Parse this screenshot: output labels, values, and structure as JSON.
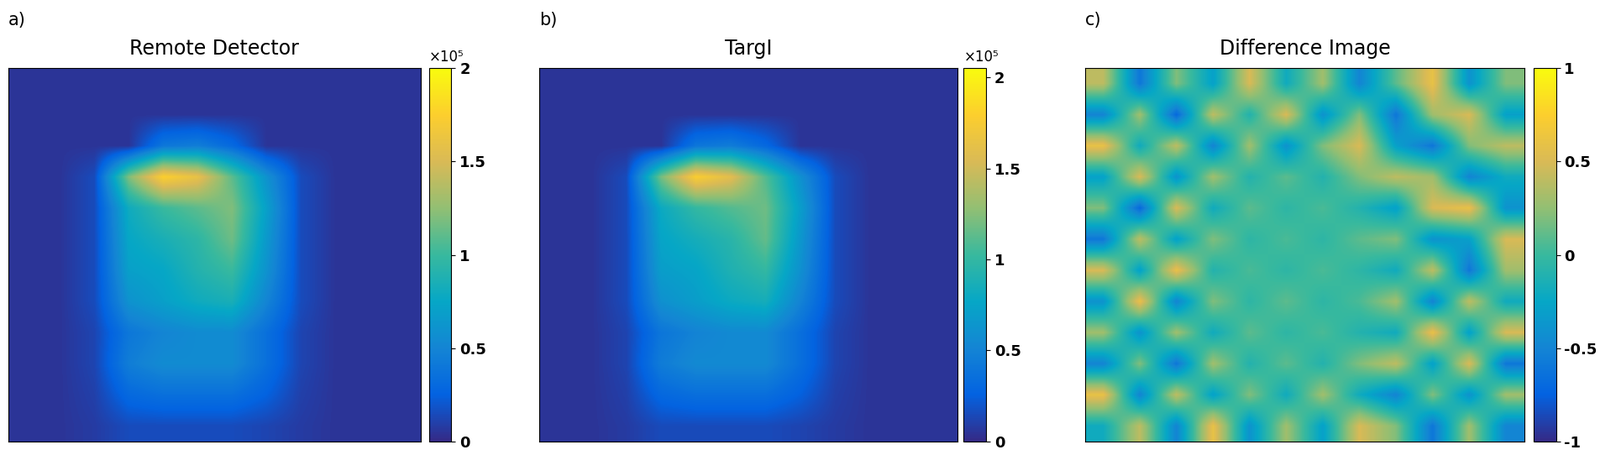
{
  "chart_data": [
    {
      "type": "heatmap",
      "panel_label": "a)",
      "title": "Remote Detector",
      "tick_labels": false,
      "cells": [
        [
          5000,
          5000,
          5000,
          5000,
          5000,
          5000,
          5000,
          5000,
          5000,
          5000,
          5000,
          5000
        ],
        [
          5000,
          5000,
          5000,
          5000,
          5000,
          5000,
          5000,
          5000,
          5000,
          5000,
          5000,
          5000
        ],
        [
          5000,
          5000,
          5000,
          5000,
          40000,
          45000,
          30000,
          5000,
          5000,
          5000,
          5000,
          5000
        ],
        [
          5000,
          5000,
          15000,
          120000,
          175000,
          160000,
          110000,
          60000,
          15000,
          5000,
          5000,
          5000
        ],
        [
          5000,
          5000,
          15000,
          80000,
          100000,
          110000,
          120000,
          70000,
          15000,
          5000,
          5000,
          5000
        ],
        [
          5000,
          5000,
          15000,
          75000,
          85000,
          95000,
          115000,
          65000,
          15000,
          5000,
          5000,
          5000
        ],
        [
          5000,
          5000,
          15000,
          70000,
          75000,
          90000,
          100000,
          60000,
          15000,
          5000,
          5000,
          5000
        ],
        [
          5000,
          5000,
          15000,
          60000,
          70000,
          80000,
          85000,
          50000,
          15000,
          5000,
          5000,
          5000
        ],
        [
          5000,
          5000,
          12000,
          40000,
          50000,
          55000,
          55000,
          35000,
          12000,
          5000,
          5000,
          5000
        ],
        [
          5000,
          5000,
          12000,
          45000,
          55000,
          55000,
          55000,
          35000,
          12000,
          5000,
          5000,
          5000
        ],
        [
          5000,
          5000,
          10000,
          30000,
          35000,
          35000,
          35000,
          25000,
          10000,
          5000,
          5000,
          5000
        ],
        [
          5000,
          5000,
          8000,
          15000,
          15000,
          15000,
          15000,
          12000,
          8000,
          5000,
          5000,
          5000
        ]
      ],
      "colorbar_range": [
        0,
        200000
      ],
      "colorbar_ticks": [
        {
          "value": 0,
          "label": "0"
        },
        {
          "value": 50000,
          "label": "0.5"
        },
        {
          "value": 100000,
          "label": "1"
        },
        {
          "value": 150000,
          "label": "1.5"
        },
        {
          "value": 200000,
          "label": "2"
        }
      ],
      "colorbar_multiplier": "×10⁵"
    },
    {
      "type": "heatmap",
      "panel_label": "b)",
      "title": "TargI",
      "tick_labels": false,
      "cells": [
        [
          5000,
          5000,
          5000,
          5000,
          5000,
          5000,
          5000,
          5000,
          5000,
          5000,
          5000,
          5000
        ],
        [
          5000,
          5000,
          5000,
          5000,
          5000,
          5000,
          5000,
          5000,
          5000,
          5000,
          5000,
          5000
        ],
        [
          5000,
          5000,
          5000,
          5000,
          40000,
          45000,
          30000,
          5000,
          5000,
          5000,
          5000,
          5000
        ],
        [
          5000,
          5000,
          15000,
          120000,
          178000,
          160000,
          110000,
          60000,
          15000,
          5000,
          5000,
          5000
        ],
        [
          5000,
          5000,
          15000,
          80000,
          100000,
          110000,
          118000,
          70000,
          15000,
          5000,
          5000,
          5000
        ],
        [
          5000,
          5000,
          15000,
          75000,
          85000,
          95000,
          115000,
          65000,
          15000,
          5000,
          5000,
          5000
        ],
        [
          5000,
          5000,
          15000,
          70000,
          75000,
          90000,
          100000,
          60000,
          15000,
          5000,
          5000,
          5000
        ],
        [
          5000,
          5000,
          15000,
          60000,
          70000,
          80000,
          85000,
          50000,
          15000,
          5000,
          5000,
          5000
        ],
        [
          5000,
          5000,
          12000,
          40000,
          50000,
          55000,
          55000,
          35000,
          12000,
          5000,
          5000,
          5000
        ],
        [
          5000,
          5000,
          12000,
          45000,
          55000,
          55000,
          55000,
          35000,
          12000,
          5000,
          5000,
          5000
        ],
        [
          5000,
          5000,
          10000,
          30000,
          35000,
          35000,
          35000,
          25000,
          10000,
          5000,
          5000,
          5000
        ],
        [
          5000,
          5000,
          8000,
          15000,
          15000,
          15000,
          15000,
          12000,
          8000,
          5000,
          5000,
          5000
        ]
      ],
      "colorbar_range": [
        0,
        205000
      ],
      "colorbar_ticks": [
        {
          "value": 0,
          "label": "0"
        },
        {
          "value": 50000,
          "label": "0.5"
        },
        {
          "value": 100000,
          "label": "1"
        },
        {
          "value": 150000,
          "label": "1.5"
        },
        {
          "value": 200000,
          "label": "2"
        }
      ],
      "colorbar_multiplier": "×10⁵"
    },
    {
      "type": "heatmap",
      "panel_label": "c)",
      "title": "Difference Image",
      "tick_labels": false,
      "cells": [
        [
          0.4,
          -0.6,
          0.2,
          -0.3,
          0.5,
          -0.2,
          0.3,
          -0.5,
          0.1,
          0.6,
          -0.4,
          0.2
        ],
        [
          -0.5,
          0.3,
          -0.7,
          0.4,
          -0.1,
          0.5,
          -0.4,
          0.2,
          -0.6,
          0.3,
          0.5,
          -0.3
        ],
        [
          0.6,
          -0.2,
          0.4,
          -0.5,
          0.3,
          -0.4,
          0.2,
          0.5,
          -0.3,
          -0.6,
          0.2,
          0.4
        ],
        [
          -0.3,
          0.5,
          -0.4,
          0.3,
          -0.1,
          0.1,
          -0.1,
          0.2,
          0.4,
          0.3,
          -0.5,
          -0.2
        ],
        [
          0.2,
          -0.7,
          0.5,
          -0.2,
          0.1,
          -0.05,
          0.05,
          -0.1,
          -0.3,
          0.5,
          0.6,
          -0.4
        ],
        [
          -0.6,
          0.4,
          -0.3,
          0.2,
          -0.05,
          0.05,
          -0.05,
          0.1,
          0.2,
          -0.4,
          -0.3,
          0.5
        ],
        [
          0.5,
          -0.3,
          0.6,
          -0.1,
          0.05,
          -0.05,
          0.05,
          -0.05,
          -0.2,
          0.4,
          -0.6,
          0.3
        ],
        [
          -0.4,
          0.6,
          -0.5,
          0.2,
          -0.05,
          0.1,
          -0.05,
          0.05,
          0.3,
          -0.5,
          0.4,
          -0.2
        ],
        [
          0.3,
          -0.4,
          0.3,
          -0.2,
          0.1,
          -0.05,
          0.05,
          -0.1,
          -0.2,
          0.6,
          -0.3,
          0.5
        ],
        [
          -0.5,
          0.2,
          -0.6,
          0.3,
          -0.1,
          0.1,
          -0.1,
          0.2,
          0.4,
          -0.3,
          0.5,
          -0.6
        ],
        [
          0.6,
          -0.5,
          0.4,
          -0.3,
          0.2,
          -0.2,
          0.3,
          -0.2,
          -0.5,
          0.2,
          -0.4,
          0.3
        ],
        [
          -0.2,
          0.4,
          -0.5,
          0.6,
          -0.4,
          0.3,
          -0.3,
          0.5,
          0.2,
          -0.6,
          0.3,
          -0.5
        ]
      ],
      "colorbar_range": [
        -1,
        1
      ],
      "colorbar_ticks": [
        -1,
        -0.5,
        0,
        0.5,
        1
      ]
    }
  ]
}
